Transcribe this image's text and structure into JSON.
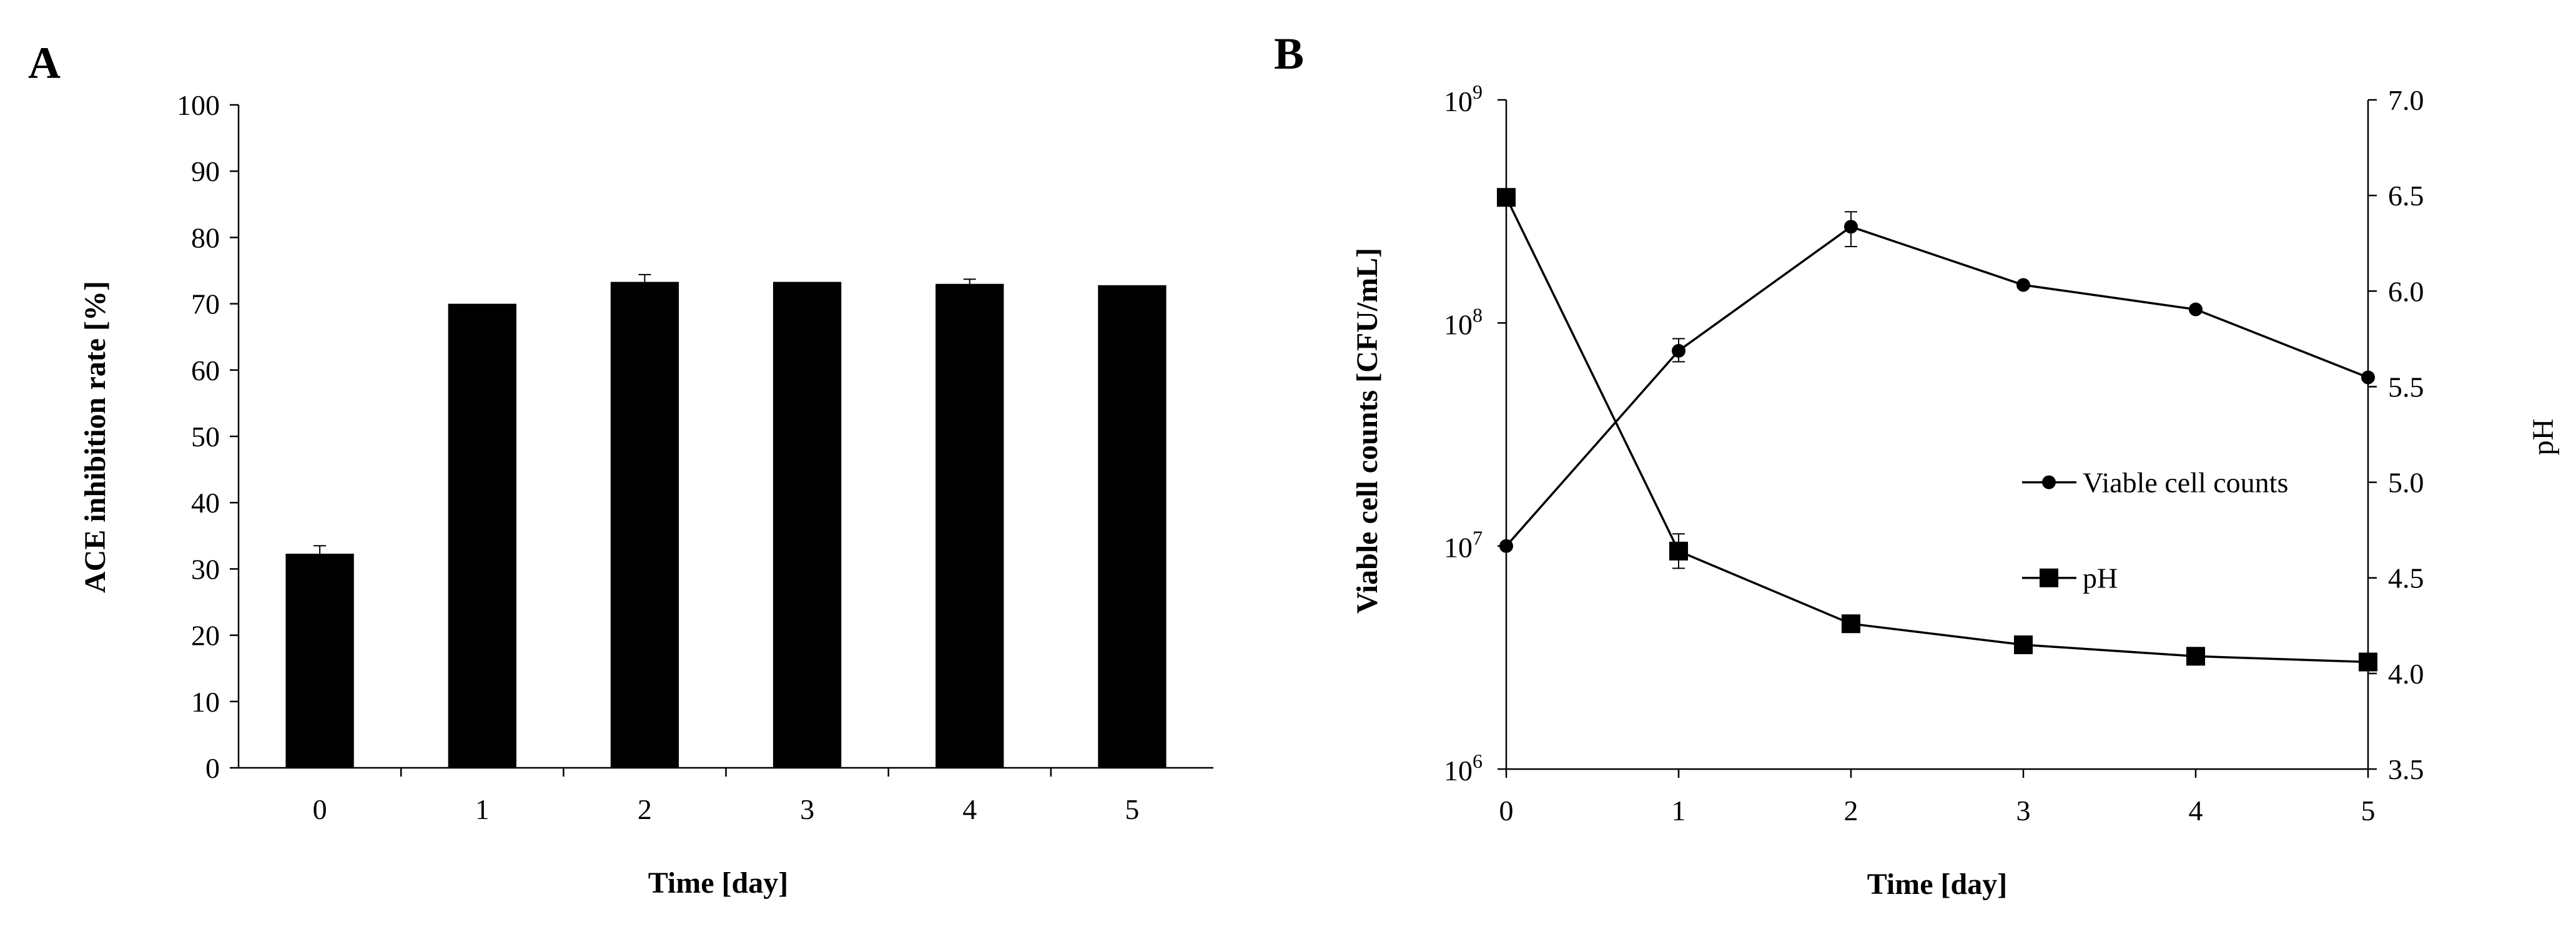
{
  "chart_data": [
    {
      "type": "bar",
      "panel": "A",
      "categories": [
        "0",
        "1",
        "2",
        "3",
        "4",
        "5"
      ],
      "values": [
        32.3,
        70.0,
        73.3,
        73.3,
        73.0,
        72.8
      ],
      "errors": [
        1.2,
        0,
        1.1,
        0,
        0.7,
        0
      ],
      "xlabel": "Time [day]",
      "ylabel": "ACE inhibition rate [%]",
      "ylim": [
        0,
        100
      ],
      "yticks": [
        0,
        10,
        20,
        30,
        40,
        50,
        60,
        70,
        80,
        90,
        100
      ],
      "bar_color": "#000000",
      "grid": false
    },
    {
      "type": "line",
      "panel": "B",
      "x": [
        0,
        1,
        2,
        3,
        4,
        5
      ],
      "xlabel": "Time [day]",
      "xticks": [
        "0",
        "1",
        "2",
        "3",
        "4",
        "5"
      ],
      "ylabel_left": "Viable cell counts [CFU/mL]",
      "ylabel_right": "pH",
      "y_left_scale": "log",
      "y_left_range": [
        1000000,
        1000000000
      ],
      "y_left_ticks": [
        {
          "base": "10",
          "exp": "6"
        },
        {
          "base": "10",
          "exp": "7"
        },
        {
          "base": "10",
          "exp": "8"
        },
        {
          "base": "10",
          "exp": "9"
        }
      ],
      "y_right_range": [
        3.5,
        7.0
      ],
      "y_right_ticks": [
        "3.5",
        "4.0",
        "4.5",
        "5.0",
        "5.5",
        "6.0",
        "6.5",
        "7.0"
      ],
      "legend_position": "right-middle",
      "grid": false,
      "series": [
        {
          "name": "Viable cell counts",
          "axis": "left",
          "marker": "circle",
          "values": [
            10000000,
            75000000,
            270000000,
            148000000,
            115000000,
            57000000
          ],
          "errors_low": [
            0,
            67000000,
            220000000,
            0,
            0,
            0
          ],
          "errors_high": [
            0,
            85000000,
            315000000,
            0,
            0,
            0
          ]
        },
        {
          "name": "pH",
          "axis": "right",
          "marker": "square",
          "values": [
            6.49,
            4.64,
            4.26,
            4.15,
            4.09,
            4.06
          ],
          "errors": [
            0,
            0.09,
            0,
            0,
            0,
            0.03
          ]
        }
      ]
    }
  ]
}
